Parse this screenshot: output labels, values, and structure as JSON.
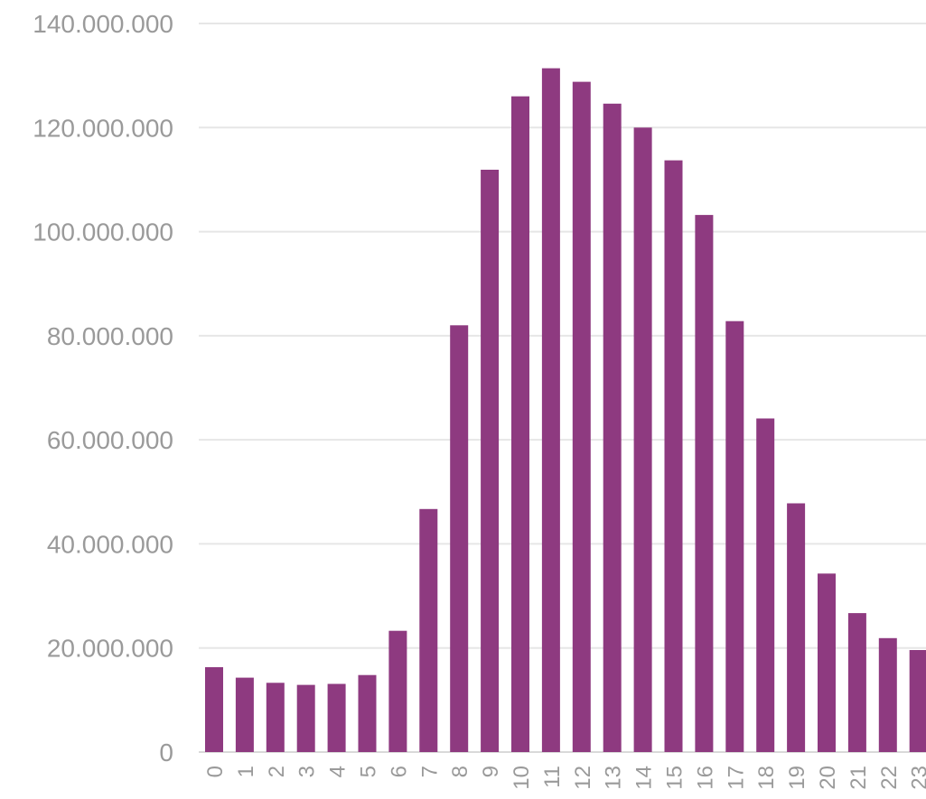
{
  "chart_data": {
    "type": "bar",
    "title": "",
    "xlabel": "",
    "ylabel": "",
    "categories": [
      "0",
      "1",
      "2",
      "3",
      "4",
      "5",
      "6",
      "7",
      "8",
      "9",
      "10",
      "11",
      "12",
      "13",
      "14",
      "15",
      "16",
      "17",
      "18",
      "19",
      "20",
      "21",
      "22",
      "23"
    ],
    "values": [
      16300000,
      14300000,
      13300000,
      12900000,
      13100000,
      14800000,
      23300000,
      46700000,
      82000000,
      111900000,
      126000000,
      131400000,
      128800000,
      124600000,
      120000000,
      113700000,
      103200000,
      82800000,
      64100000,
      47800000,
      34300000,
      26700000,
      21900000,
      19600000
    ],
    "ylim": [
      0,
      140000000
    ],
    "yticks": [
      0,
      20000000,
      40000000,
      60000000,
      80000000,
      100000000,
      120000000,
      140000000
    ],
    "ytick_labels": [
      "0",
      "20.000.000",
      "40.000.000",
      "60.000.000",
      "80.000.000",
      "100.000.000",
      "120.000.000",
      "140.000.000"
    ],
    "grid": true,
    "legend": "none",
    "bar_color": "#8e3a80"
  }
}
